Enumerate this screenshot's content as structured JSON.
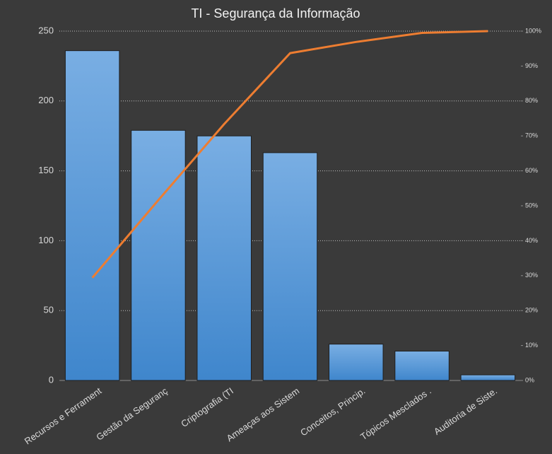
{
  "chart_data": {
    "type": "pareto",
    "title": "TI - Segurança  da Informação",
    "categories": [
      "Recursos e Ferrament",
      "Gestão da Seguranç",
      "Criptografia (TI",
      "Ameaças aos Sistem",
      "Conceitos, Princip.",
      "Tópicos Mesclados  .",
      "Auditoria  de Siste."
    ],
    "series": [
      {
        "type": "bar",
        "color": "#5b9bd5",
        "values": [
          236,
          179,
          175,
          163,
          26,
          21,
          4
        ]
      },
      {
        "type": "line",
        "color": "#ed7d31",
        "axis": "y2",
        "values": [
          29.4,
          51.6,
          73.4,
          93.7,
          96.9,
          99.5,
          100
        ]
      }
    ],
    "ylim": [
      0,
      250
    ],
    "yticks": [
      0,
      50,
      100,
      150,
      200,
      250
    ],
    "y2lim": [
      0,
      100
    ],
    "y2ticks": [
      {
        "value": 0,
        "label": "0%"
      },
      {
        "value": 10,
        "label": "10%"
      },
      {
        "value": 20,
        "label": "20%"
      },
      {
        "value": 30,
        "label": "30%"
      },
      {
        "value": 40,
        "label": "40%"
      },
      {
        "value": 50,
        "label": "50%"
      },
      {
        "value": 60,
        "label": "60%"
      },
      {
        "value": 70,
        "label": "70%"
      },
      {
        "value": 80,
        "label": "80%"
      },
      {
        "value": 90,
        "label": "90%"
      },
      {
        "value": 100,
        "label": "100%"
      }
    ],
    "grid": true
  }
}
